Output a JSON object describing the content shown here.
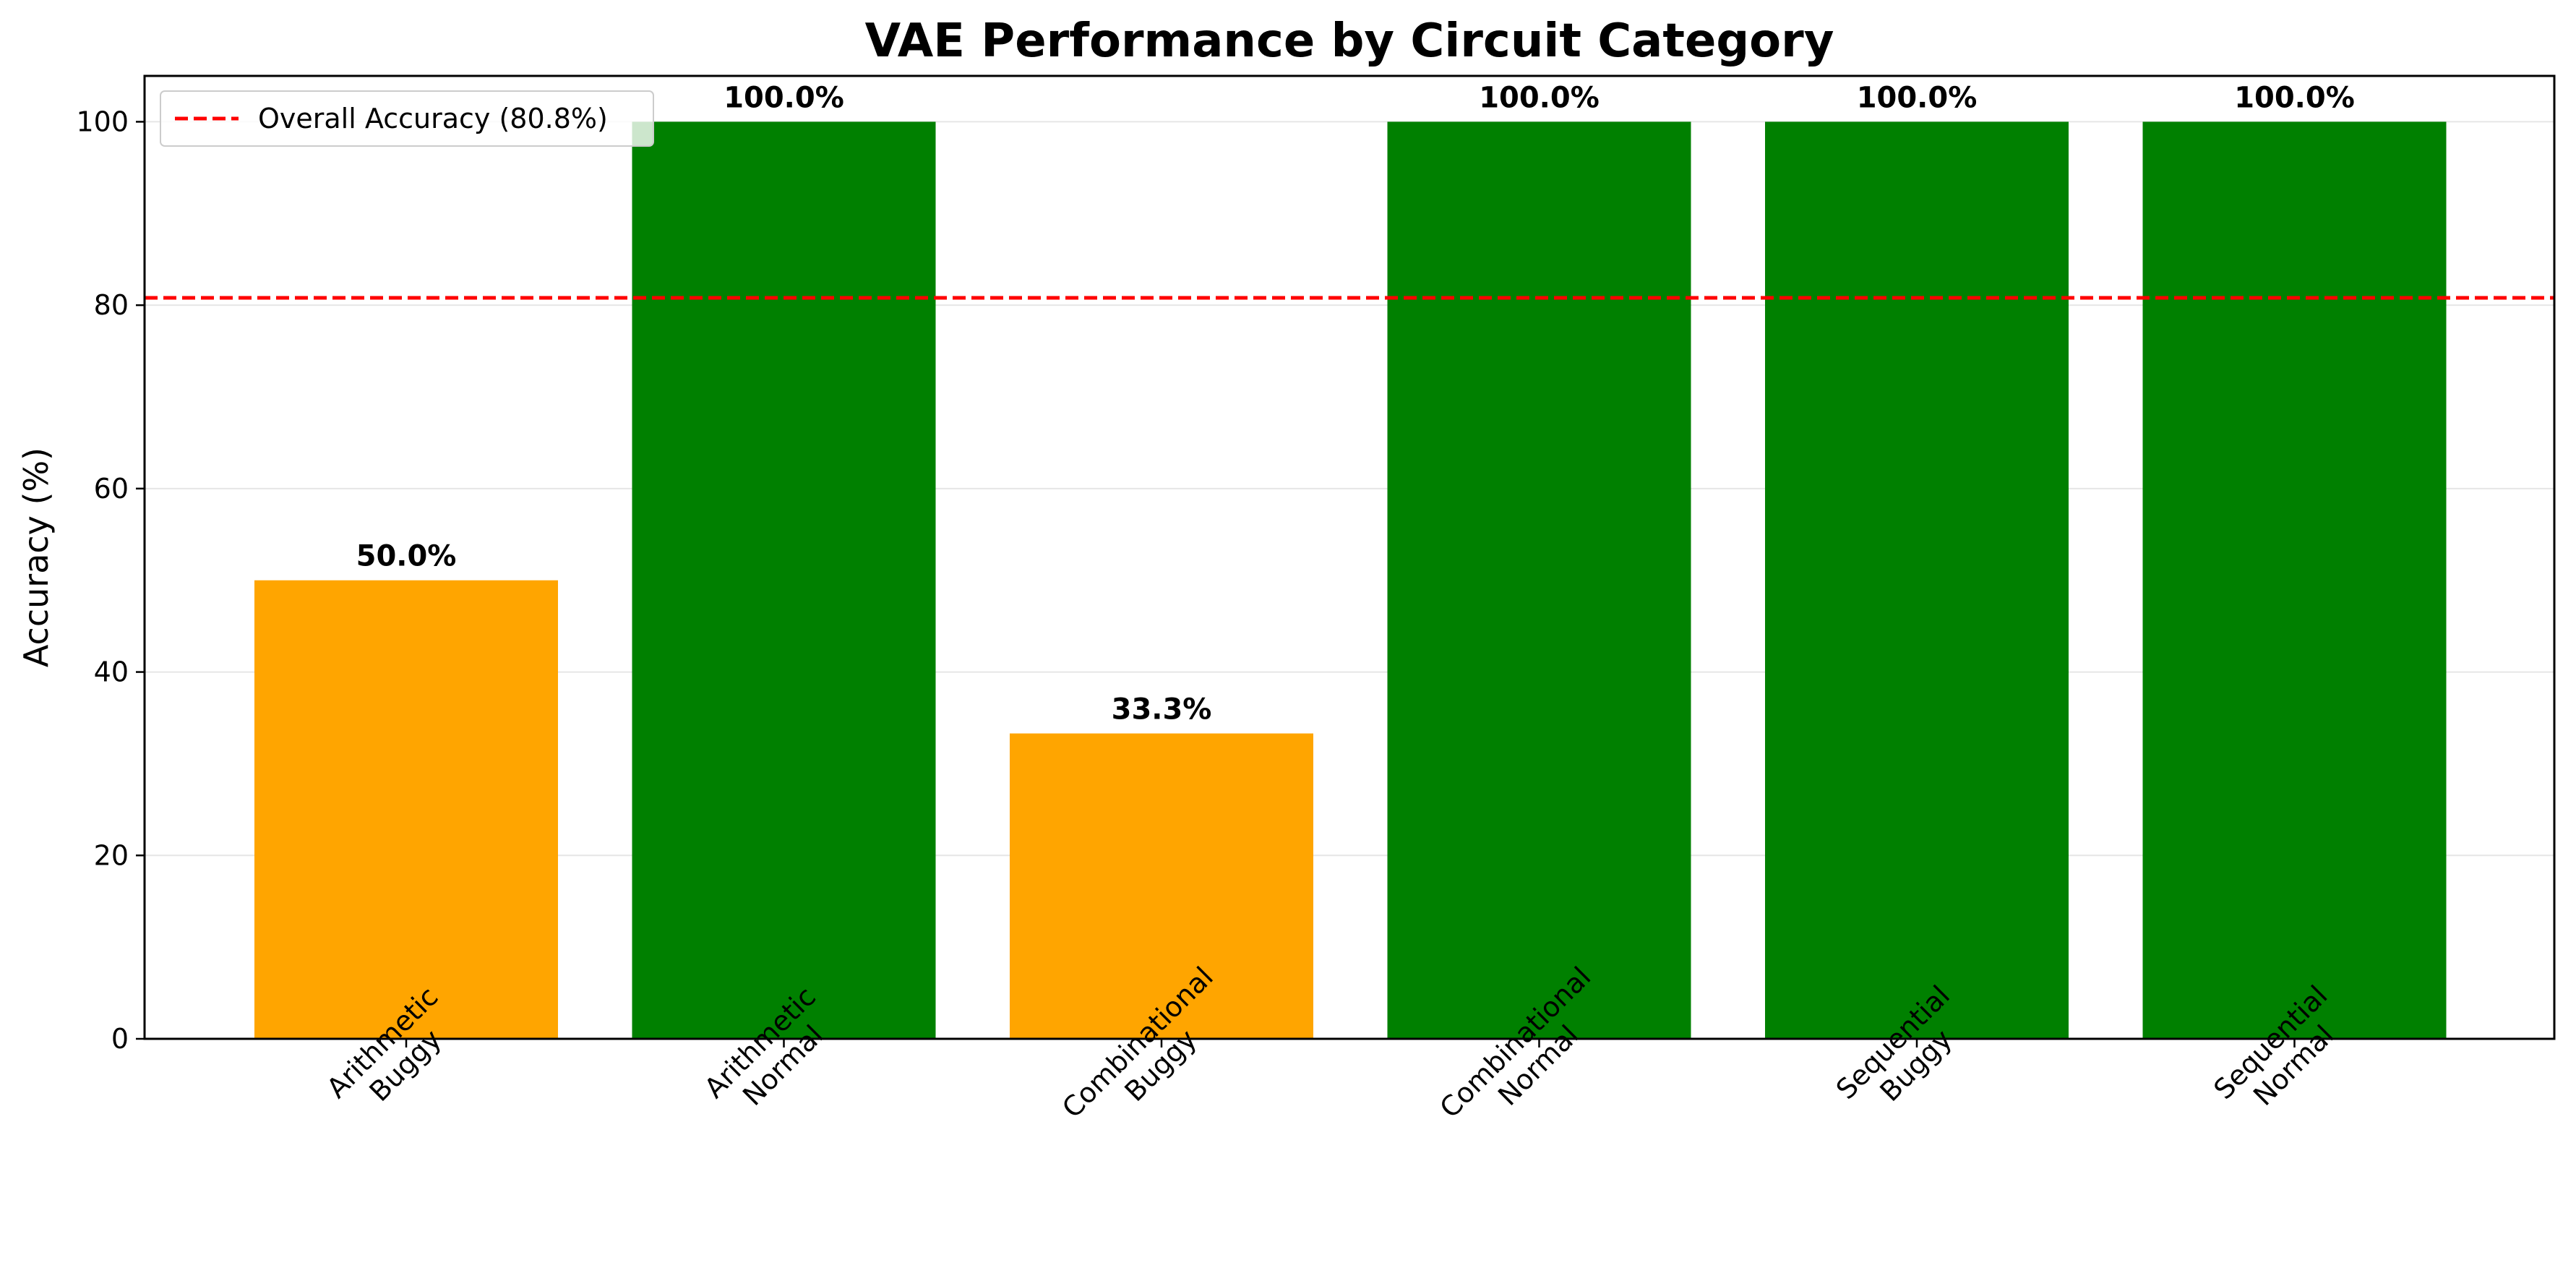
{
  "chart_data": {
    "type": "bar",
    "title": "VAE Performance by Circuit Category",
    "xlabel": "",
    "ylabel": "Accuracy (%)",
    "ylim": [
      0,
      105
    ],
    "yticks": [
      0,
      20,
      40,
      60,
      80,
      100
    ],
    "grid": "y",
    "categories": [
      [
        "Arithmetic",
        "Buggy"
      ],
      [
        "Arithmetic",
        "Normal"
      ],
      [
        "Combinational",
        "Buggy"
      ],
      [
        "Combinational",
        "Normal"
      ],
      [
        "Sequential",
        "Buggy"
      ],
      [
        "Sequential",
        "Normal"
      ]
    ],
    "values": [
      50.0,
      100.0,
      33.3,
      100.0,
      100.0,
      100.0
    ],
    "data_labels": [
      "50.0%",
      "100.0%",
      "33.3%",
      "100.0%",
      "100.0%",
      "100.0%"
    ],
    "bar_colors": [
      "#FFA500",
      "#008000",
      "#FFA500",
      "#008000",
      "#008000",
      "#008000"
    ],
    "reference_line": {
      "value": 80.8,
      "label": "Overall Accuracy (80.8%)",
      "color": "#FF0000",
      "style": "dashed"
    },
    "legend": {
      "placement": "top-left"
    }
  }
}
